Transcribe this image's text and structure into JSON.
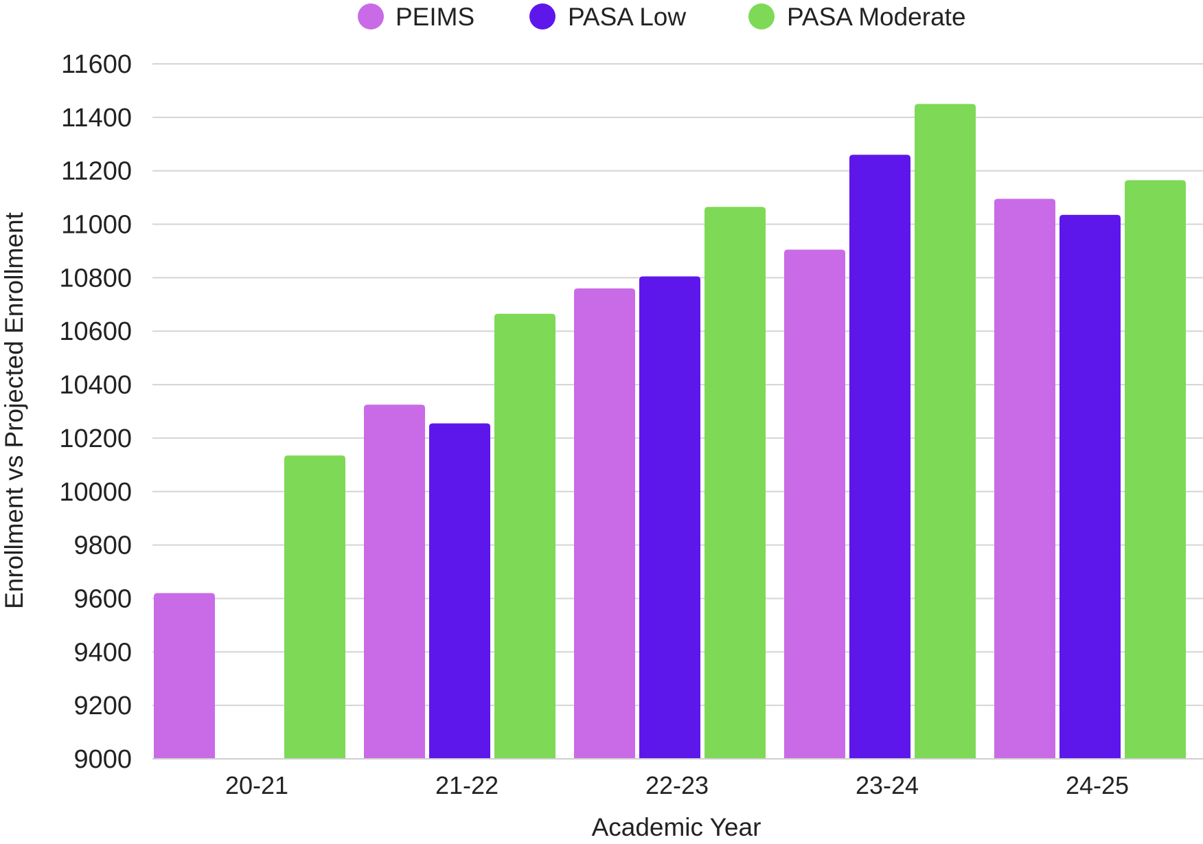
{
  "chart_data": {
    "type": "bar",
    "title": "",
    "xlabel": "Academic Year",
    "ylabel": "Enrollment vs Projected Enrollment",
    "categories": [
      "20-21",
      "21-22",
      "22-23",
      "23-24",
      "24-25"
    ],
    "series": [
      {
        "name": "PEIMS",
        "color": "#c96be6",
        "values": [
          9620,
          10325,
          10760,
          10905,
          11095
        ]
      },
      {
        "name": "PASA Low",
        "color": "#5e17eb",
        "values": [
          null,
          10255,
          10805,
          11260,
          11035
        ]
      },
      {
        "name": "PASA Moderate",
        "color": "#7ed957",
        "values": [
          10135,
          10665,
          11065,
          11450,
          11165
        ]
      }
    ],
    "ylim": [
      9000,
      11600
    ],
    "yticks": [
      9000,
      9200,
      9400,
      9600,
      9800,
      10000,
      10200,
      10400,
      10600,
      10800,
      11000,
      11200,
      11400,
      11600
    ],
    "grid": true,
    "legend_position": "top-center"
  }
}
